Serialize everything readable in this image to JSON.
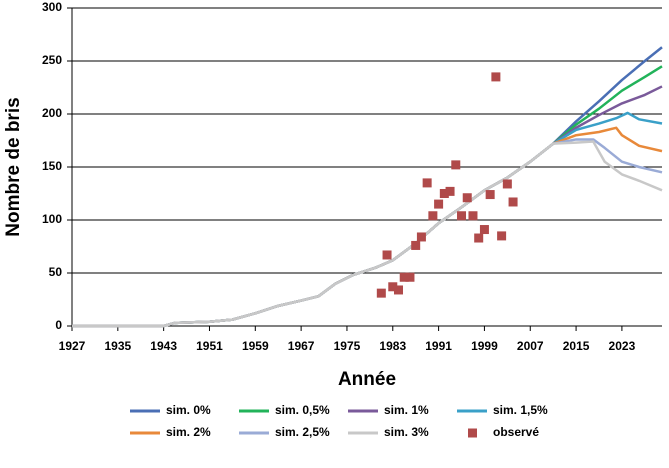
{
  "chart_data": {
    "type": "line",
    "xlabel": "Année",
    "ylabel": "Nombre de bris",
    "xlim": [
      1927,
      2030
    ],
    "xticks": [
      1927,
      1935,
      1943,
      1951,
      1959,
      1967,
      1975,
      1983,
      1991,
      1999,
      2007,
      2015,
      2023
    ],
    "ylim": [
      0,
      300
    ],
    "yticks": [
      0,
      50,
      100,
      150,
      200,
      250,
      300
    ],
    "grid": true,
    "series": [
      {
        "name": "sim. 0%",
        "color": "#4a6fb5",
        "x": [
          1927,
          1943,
          1945,
          1951,
          1955,
          1959,
          1963,
          1967,
          1970,
          1973,
          1976,
          1980,
          1983,
          1987,
          1991,
          1995,
          1999,
          2003,
          2007,
          2011,
          2015,
          2019,
          2023,
          2027,
          2030
        ],
        "values": [
          0,
          0,
          3,
          4,
          6,
          12,
          19,
          24,
          28,
          40,
          48,
          55,
          62,
          78,
          97,
          112,
          128,
          140,
          155,
          172,
          193,
          212,
          232,
          250,
          263
        ]
      },
      {
        "name": "sim. 0,5%",
        "color": "#22b35a",
        "x": [
          1927,
          1943,
          1945,
          1951,
          1955,
          1959,
          1963,
          1967,
          1970,
          1973,
          1976,
          1980,
          1983,
          1987,
          1991,
          1995,
          1999,
          2003,
          2007,
          2011,
          2015,
          2019,
          2023,
          2027,
          2030
        ],
        "values": [
          0,
          0,
          3,
          4,
          6,
          12,
          19,
          24,
          28,
          40,
          48,
          55,
          62,
          78,
          97,
          112,
          128,
          140,
          155,
          172,
          190,
          205,
          222,
          235,
          245
        ]
      },
      {
        "name": "sim. 1%",
        "color": "#7a5a9a",
        "x": [
          1927,
          1943,
          1945,
          1951,
          1955,
          1959,
          1963,
          1967,
          1970,
          1973,
          1976,
          1980,
          1983,
          1987,
          1991,
          1995,
          1999,
          2003,
          2007,
          2011,
          2015,
          2019,
          2023,
          2027,
          2030
        ],
        "values": [
          0,
          0,
          3,
          4,
          6,
          12,
          19,
          24,
          28,
          40,
          48,
          55,
          62,
          78,
          97,
          112,
          128,
          140,
          155,
          172,
          187,
          199,
          210,
          218,
          226
        ]
      },
      {
        "name": "sim. 1,5%",
        "color": "#3aa0c8",
        "x": [
          1927,
          1943,
          1945,
          1951,
          1955,
          1959,
          1963,
          1967,
          1970,
          1973,
          1976,
          1980,
          1983,
          1987,
          1991,
          1995,
          1999,
          2003,
          2007,
          2011,
          2015,
          2019,
          2022,
          2024,
          2026,
          2030
        ],
        "values": [
          0,
          0,
          3,
          4,
          6,
          12,
          19,
          24,
          28,
          40,
          48,
          55,
          62,
          78,
          97,
          112,
          128,
          140,
          155,
          172,
          185,
          191,
          196,
          201,
          195,
          191
        ]
      },
      {
        "name": "sim. 2%",
        "color": "#e8893a",
        "x": [
          1927,
          1943,
          1945,
          1951,
          1955,
          1959,
          1963,
          1967,
          1970,
          1973,
          1976,
          1980,
          1983,
          1987,
          1991,
          1995,
          1999,
          2003,
          2007,
          2011,
          2015,
          2019,
          2022,
          2023,
          2026,
          2030
        ],
        "values": [
          0,
          0,
          3,
          4,
          6,
          12,
          19,
          24,
          28,
          40,
          48,
          55,
          62,
          78,
          97,
          112,
          128,
          140,
          155,
          172,
          180,
          183,
          187,
          180,
          170,
          165
        ]
      },
      {
        "name": "sim. 2,5%",
        "color": "#9aabd6",
        "x": [
          1927,
          1943,
          1945,
          1951,
          1955,
          1959,
          1963,
          1967,
          1970,
          1973,
          1976,
          1980,
          1983,
          1987,
          1991,
          1995,
          1999,
          2003,
          2007,
          2011,
          2015,
          2018,
          2020,
          2023,
          2026,
          2030
        ],
        "values": [
          0,
          0,
          3,
          4,
          6,
          12,
          19,
          24,
          28,
          40,
          48,
          55,
          62,
          78,
          97,
          112,
          128,
          140,
          155,
          172,
          176,
          176,
          168,
          155,
          150,
          145
        ]
      },
      {
        "name": "sim. 3%",
        "color": "#c8c8c8",
        "x": [
          1927,
          1943,
          1945,
          1951,
          1955,
          1959,
          1963,
          1967,
          1970,
          1973,
          1976,
          1980,
          1983,
          1987,
          1991,
          1995,
          1999,
          2003,
          2007,
          2011,
          2015,
          2018,
          2020,
          2023,
          2026,
          2030
        ],
        "values": [
          0,
          0,
          3,
          4,
          6,
          12,
          19,
          24,
          28,
          40,
          48,
          55,
          62,
          78,
          97,
          112,
          128,
          140,
          155,
          172,
          173,
          174,
          155,
          143,
          137,
          128
        ]
      },
      {
        "name": "observé",
        "color": "#b04a4a",
        "type": "scatter",
        "x": [
          1981,
          1982,
          1983,
          1984,
          1985,
          1986,
          1987,
          1988,
          1989,
          1990,
          1991,
          1992,
          1993,
          1994,
          1995,
          1996,
          1997,
          1998,
          1999,
          2000,
          2001,
          2002,
          2003,
          2004
        ],
        "values": [
          31,
          67,
          37,
          34,
          46,
          46,
          76,
          84,
          135,
          104,
          115,
          125,
          127,
          152,
          104,
          121,
          104,
          83,
          91,
          124,
          235,
          85,
          134,
          117
        ]
      }
    ]
  }
}
